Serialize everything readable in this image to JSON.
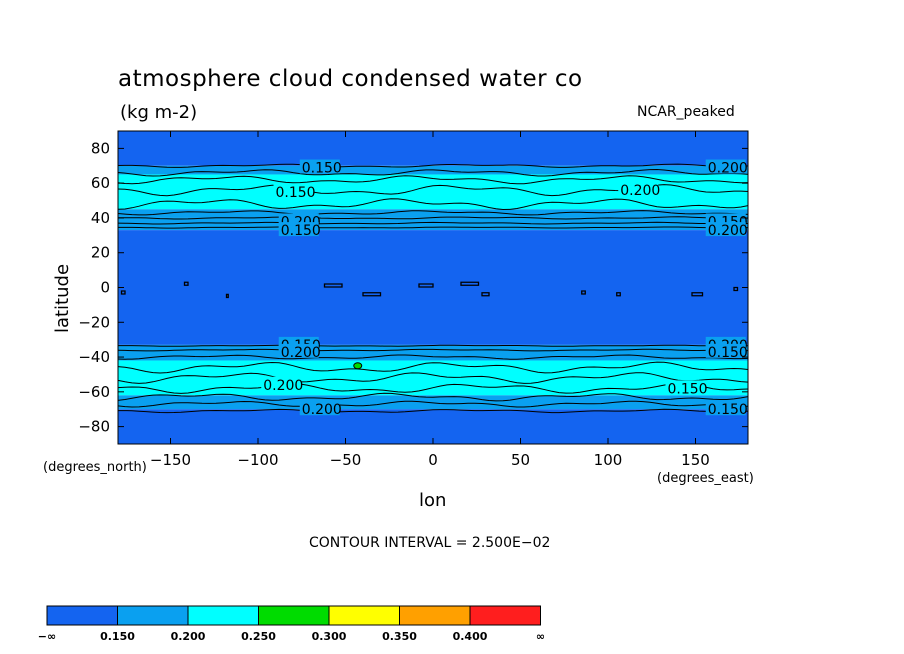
{
  "chart_data": {
    "type": "contour",
    "title": "atmosphere cloud condensed water co",
    "units": "(kg m-2)",
    "dataset": "NCAR_peaked",
    "xlabel": "lon",
    "ylabel": "latitude",
    "x_units": "(degrees_east)",
    "y_units": "(degrees_north)",
    "xlim": [
      -180,
      180
    ],
    "ylim": [
      -90,
      90
    ],
    "x_ticks": [
      -150,
      -100,
      -50,
      0,
      50,
      100,
      150
    ],
    "y_ticks": [
      80,
      60,
      40,
      20,
      0,
      -20,
      -40,
      -60,
      -80
    ],
    "x_tick_labels": [
      "−150",
      "−100",
      "−50",
      "0",
      "50",
      "100",
      "150"
    ],
    "y_tick_labels": [
      "80",
      "60",
      "40",
      "20",
      "0",
      "−20",
      "−40",
      "−60",
      "−80"
    ],
    "contour_interval_text": "CONTOUR INTERVAL = 2.500E−02",
    "contour_labels": [
      "0.150",
      "0.200",
      "0.150",
      "0.200",
      "0.200",
      "0.150",
      "0.150",
      "0.200",
      "0.150",
      "0.200",
      "0.200",
      "0.150",
      "0.200",
      "0.150",
      "0.200",
      "0.150"
    ],
    "bands": [
      {
        "lat": [
          70,
          90
        ],
        "level": 0
      },
      {
        "lat": [
          65,
          70
        ],
        "level": 1
      },
      {
        "lat": [
          45,
          65
        ],
        "level": 2
      },
      {
        "lat": [
          40,
          45
        ],
        "level": 1
      },
      {
        "lat": [
          33,
          40
        ],
        "level": 1
      },
      {
        "lat": [
          -33,
          33
        ],
        "level": 0
      },
      {
        "lat": [
          -42,
          -33
        ],
        "level": 1
      },
      {
        "lat": [
          -62,
          -42
        ],
        "level": 2
      },
      {
        "lat": [
          -70,
          -62
        ],
        "level": 1
      },
      {
        "lat": [
          -90,
          -70
        ],
        "level": 0
      }
    ],
    "colorbar": {
      "levels": [
        "−∞",
        "0.150",
        "0.200",
        "0.250",
        "0.300",
        "0.350",
        "0.400",
        "∞"
      ],
      "colors": [
        "#1464f0",
        "#0aa0f0",
        "#00ffff",
        "#00dc00",
        "#ffff00",
        "#ffa000",
        "#ff1e1e"
      ]
    }
  }
}
